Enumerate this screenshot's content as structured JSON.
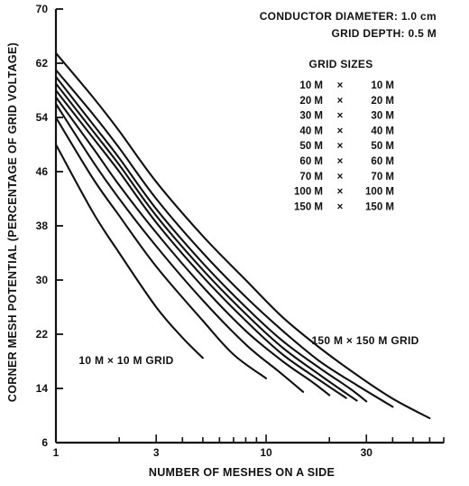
{
  "chart_data": {
    "type": "line",
    "title": "",
    "xlabel": "NUMBER OF MESHES ON A SIDE",
    "ylabel": "CORNER MESH POTENTIAL (PERCENTAGE OF GRID VOLTAGE)",
    "x_scale": "log",
    "xlim": [
      1,
      70
    ],
    "ylim": [
      6,
      70
    ],
    "x_ticks": [
      1,
      3,
      10,
      30
    ],
    "x_tick_labels": [
      "1",
      "3",
      "10",
      "30"
    ],
    "y_ticks": [
      6,
      14,
      22,
      30,
      38,
      46,
      54,
      62,
      70
    ],
    "y_tick_labels": [
      "6",
      "14",
      "22",
      "30",
      "38",
      "46",
      "54",
      "62",
      "70"
    ],
    "grid": false,
    "annotations": {
      "conductor": "CONDUCTOR DIAMETER: 1.0 cm",
      "depth": "GRID DEPTH: 0.5 M",
      "grid_sizes_heading": "GRID SIZES",
      "small_grid_label": "10 M × 10 M GRID",
      "large_grid_label": "150 M × 150 M GRID"
    },
    "legend": {
      "placement": "top-right",
      "entries": [
        {
          "a": "10 M",
          "sep": "×",
          "b": "10 M"
        },
        {
          "a": "20 M",
          "sep": "×",
          "b": "20 M"
        },
        {
          "a": "30 M",
          "sep": "×",
          "b": "30 M"
        },
        {
          "a": "40 M",
          "sep": "×",
          "b": "40 M"
        },
        {
          "a": "50 M",
          "sep": "×",
          "b": "50 M"
        },
        {
          "a": "60 M",
          "sep": "×",
          "b": "60 M"
        },
        {
          "a": "70 M",
          "sep": "×",
          "b": "70 M"
        },
        {
          "a": "100 M",
          "sep": "×",
          "b": "100 M"
        },
        {
          "a": "150 M",
          "sep": "×",
          "b": "150 M"
        }
      ]
    },
    "series": [
      {
        "x": [
          1,
          1.5,
          2,
          3,
          4,
          5
        ],
        "y": [
          50,
          40,
          34,
          26,
          21.5,
          18.5
        ]
      },
      {
        "x": [
          1,
          1.5,
          2,
          3,
          5,
          7,
          10
        ],
        "y": [
          54,
          45,
          39.5,
          32,
          24,
          19,
          15.5
        ]
      },
      {
        "x": [
          1,
          1.5,
          2,
          3,
          5,
          8,
          11.5,
          15
        ],
        "y": [
          56,
          47.5,
          42,
          35,
          27,
          20.5,
          16.5,
          13.5
        ]
      },
      {
        "x": [
          1,
          1.5,
          2,
          3,
          5,
          8,
          12,
          16.5,
          20
        ],
        "y": [
          57,
          49.5,
          44,
          37,
          29,
          22.5,
          18,
          15,
          13
        ]
      },
      {
        "x": [
          1,
          1.5,
          2,
          3,
          5,
          8,
          12,
          18,
          24
        ],
        "y": [
          58,
          51,
          46,
          38.5,
          30.5,
          24,
          19,
          15.2,
          12.6
        ]
      },
      {
        "x": [
          1,
          1.5,
          2,
          3,
          5,
          8,
          12,
          18,
          27
        ],
        "y": [
          59,
          52,
          47,
          39.5,
          31.5,
          25,
          20,
          16,
          12.2
        ]
      },
      {
        "x": [
          1,
          1.5,
          2,
          3,
          5,
          8,
          12,
          18,
          25,
          30
        ],
        "y": [
          60,
          53,
          48,
          40.5,
          32.5,
          26,
          21,
          17,
          14,
          12.1
        ]
      },
      {
        "x": [
          1,
          1.5,
          2,
          3,
          5,
          8,
          12,
          18,
          27,
          40
        ],
        "y": [
          61,
          54.5,
          49.5,
          42,
          34,
          27.5,
          22.5,
          18,
          14.5,
          11.3
        ]
      },
      {
        "x": [
          1,
          1.5,
          2,
          3,
          5,
          8,
          12,
          18,
          27,
          40,
          60
        ],
        "y": [
          63.5,
          57,
          52,
          44.5,
          36.5,
          30,
          24.5,
          20,
          16,
          12.5,
          9.6
        ]
      }
    ]
  }
}
